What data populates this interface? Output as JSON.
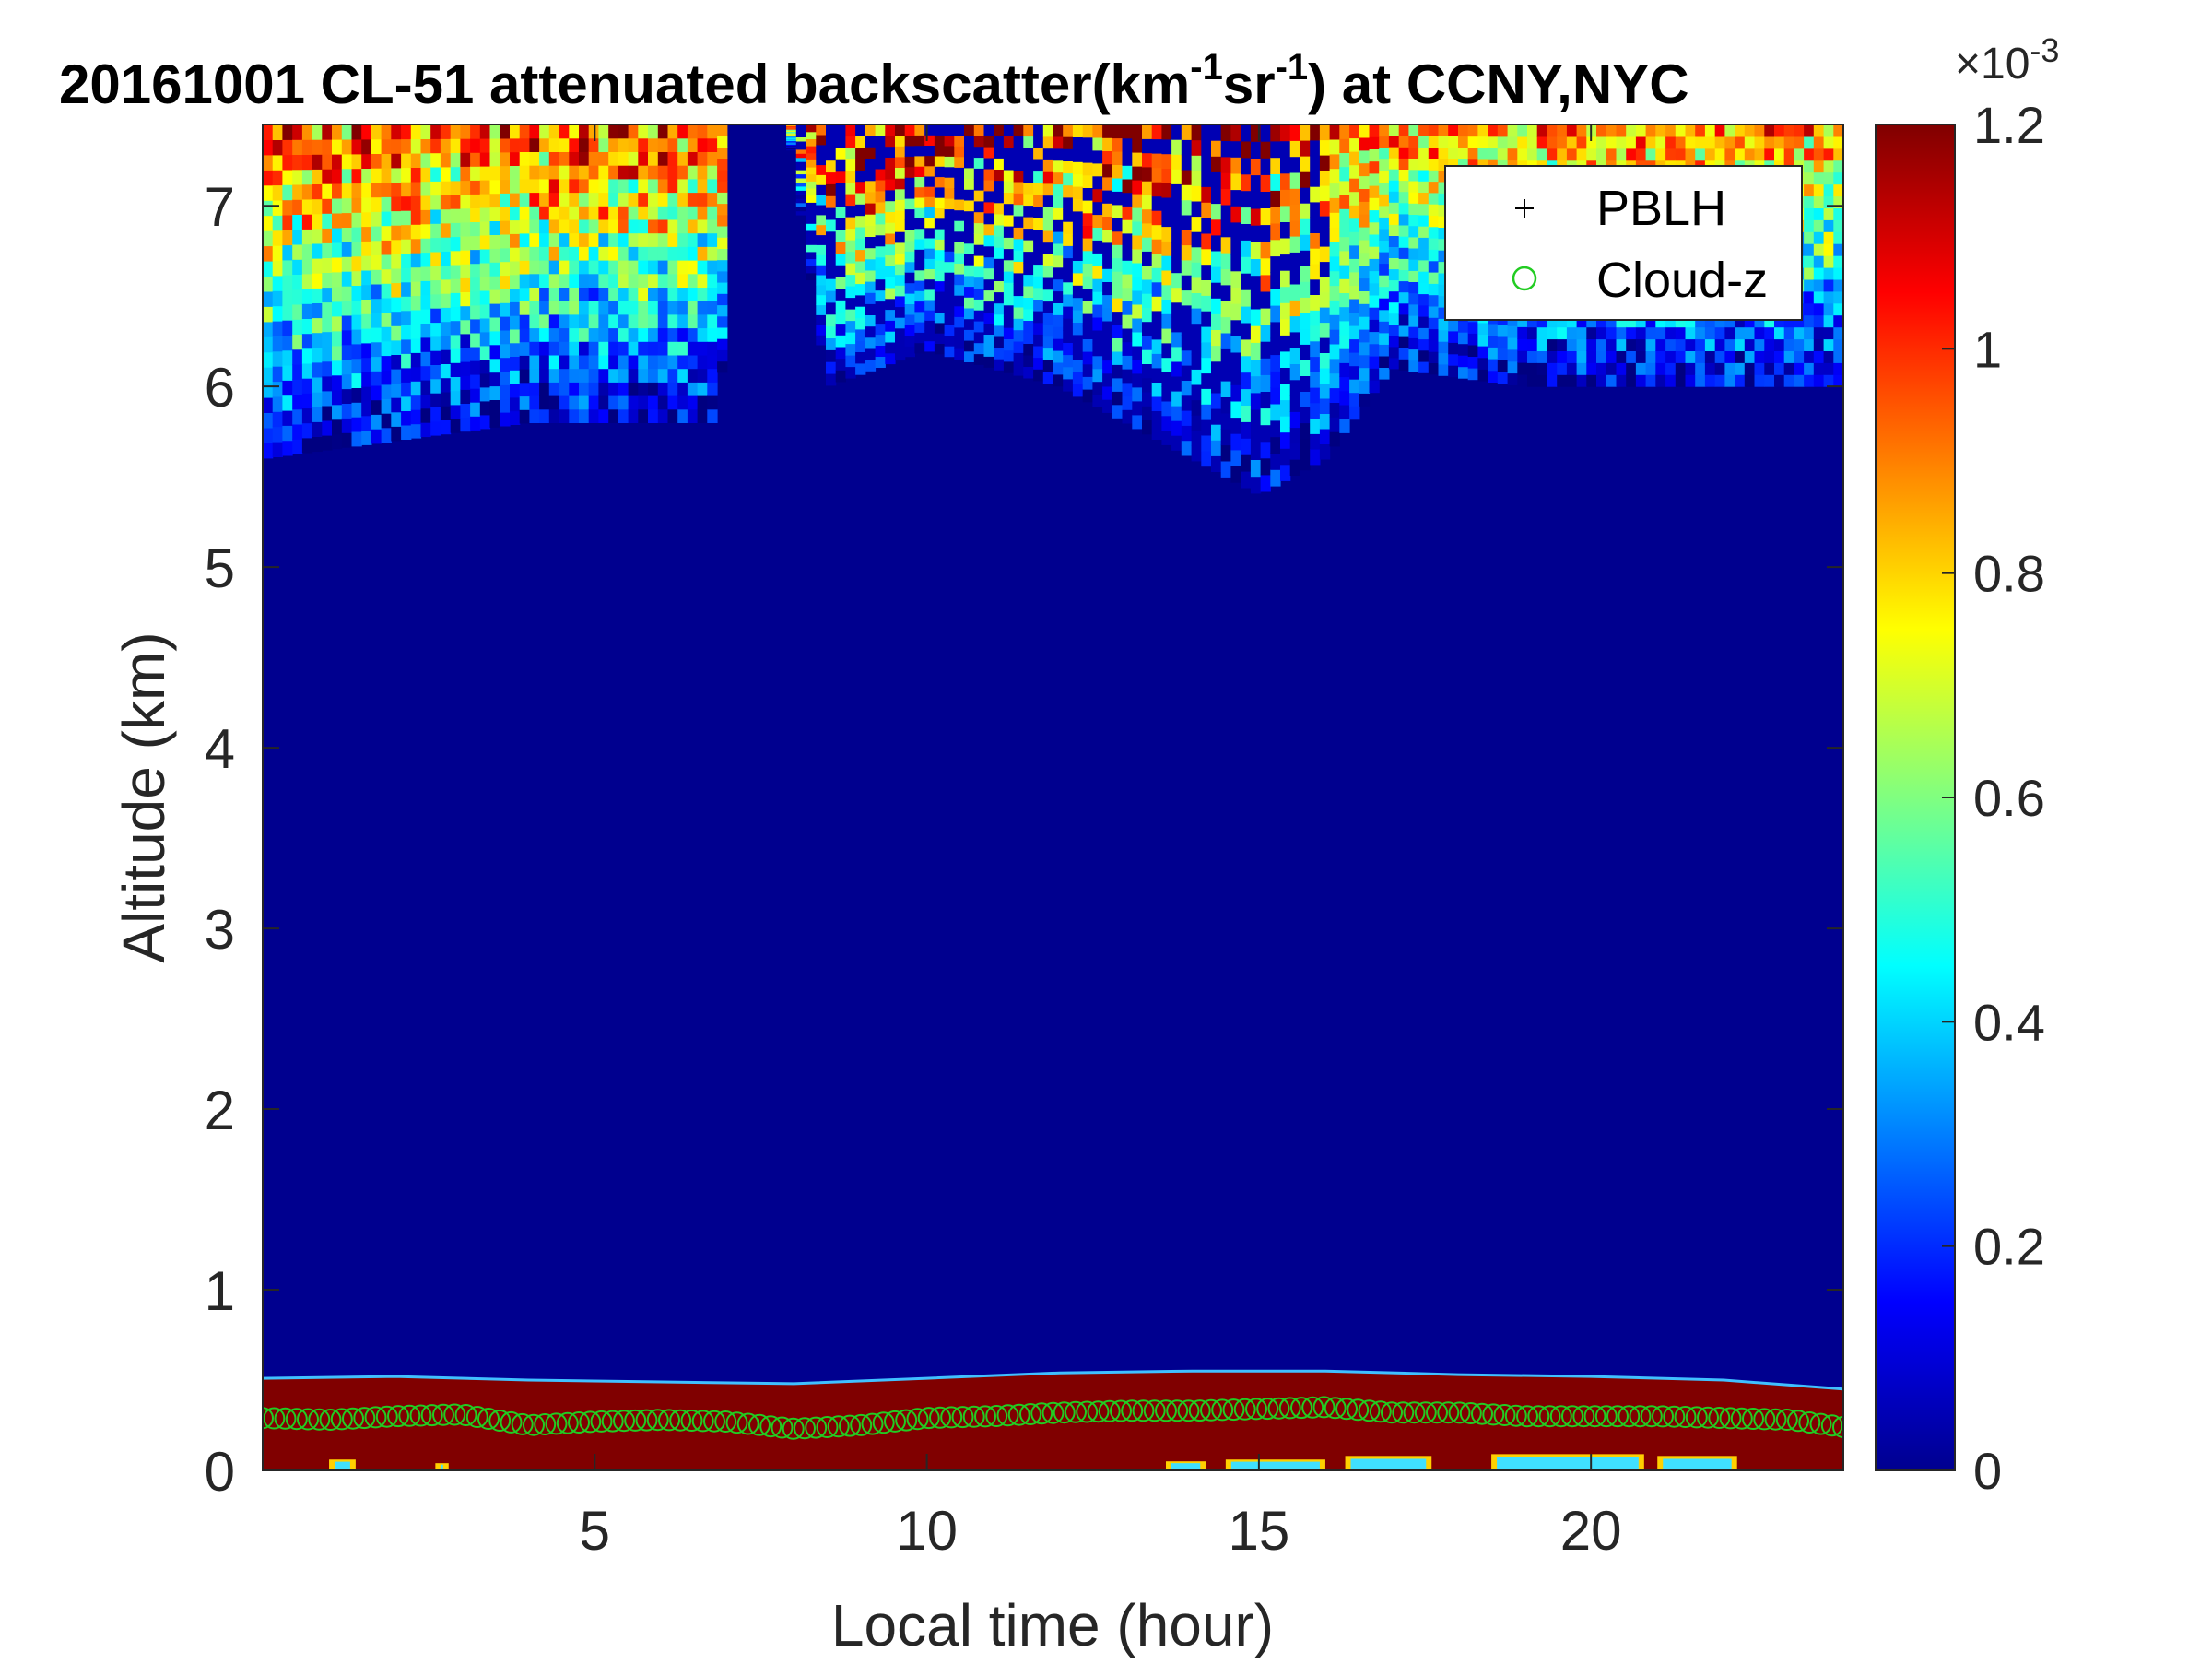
{
  "title": {
    "prefix": "20161001  CL-51 attenuated backscatter(km",
    "sup1": "-1",
    "middle": "sr",
    "sup2": "-1",
    "suffix": ") at CCNY,NYC"
  },
  "chart_data": {
    "type": "heatmap",
    "xlabel": "Local time (hour)",
    "ylabel": "Altitude (km)",
    "xlim": [
      0,
      23.8
    ],
    "ylim": [
      0,
      7.45
    ],
    "xticks": [
      5,
      10,
      15,
      20
    ],
    "yticks": [
      0,
      1,
      2,
      3,
      4,
      5,
      6,
      7
    ],
    "colormap": "jet",
    "colorbar": {
      "clim": [
        0,
        1.2
      ],
      "ticks": [
        0,
        0.2,
        0.4,
        0.6,
        0.8,
        1,
        1.2
      ],
      "tick_labels": [
        "0",
        "0.2",
        "0.4",
        "0.6",
        "0.8",
        "1",
        "1.2"
      ],
      "exponent_label": "×10",
      "exponent": "-3"
    },
    "legend": {
      "placement": "top-right",
      "entries": [
        {
          "label": "PBLH",
          "marker": "+",
          "color": "#000000"
        },
        {
          "label": "Cloud-z",
          "marker": "o",
          "color": "#22cc22"
        }
      ]
    },
    "series": [
      {
        "name": "Cloud-z",
        "marker": "o",
        "color": "#22cc22",
        "x": [
          0.0,
          1.0,
          2.0,
          3.0,
          4.0,
          5.0,
          6.0,
          7.0,
          8.0,
          9.0,
          10.0,
          11.0,
          12.0,
          13.0,
          14.0,
          15.0,
          16.0,
          17.0,
          18.0,
          19.0,
          20.0,
          21.0,
          22.0,
          23.0,
          23.8
        ],
        "y": [
          0.29,
          0.28,
          0.3,
          0.31,
          0.25,
          0.27,
          0.28,
          0.27,
          0.23,
          0.25,
          0.29,
          0.3,
          0.32,
          0.33,
          0.33,
          0.34,
          0.35,
          0.32,
          0.32,
          0.3,
          0.3,
          0.3,
          0.29,
          0.28,
          0.24
        ]
      }
    ],
    "boundary_layer_top_km": {
      "x": [
        0,
        2,
        4,
        6,
        8,
        10,
        12,
        14,
        16,
        18,
        20,
        22,
        23.8
      ],
      "y": [
        0.51,
        0.52,
        0.5,
        0.49,
        0.48,
        0.51,
        0.54,
        0.55,
        0.55,
        0.53,
        0.52,
        0.5,
        0.45
      ]
    },
    "aerosol_upper_layer_bottom_km": {
      "x": [
        0,
        2,
        4,
        6,
        6.9,
        7.0,
        7.9,
        8.5,
        10,
        12,
        13.5,
        15,
        16,
        17,
        19,
        21,
        23,
        23.8
      ],
      "y": [
        5.6,
        5.7,
        5.8,
        5.8,
        5.8,
        7.45,
        7.45,
        6.0,
        6.2,
        6.0,
        5.7,
        5.4,
        5.6,
        6.1,
        6.0,
        6.0,
        6.0,
        6.0
      ]
    }
  }
}
